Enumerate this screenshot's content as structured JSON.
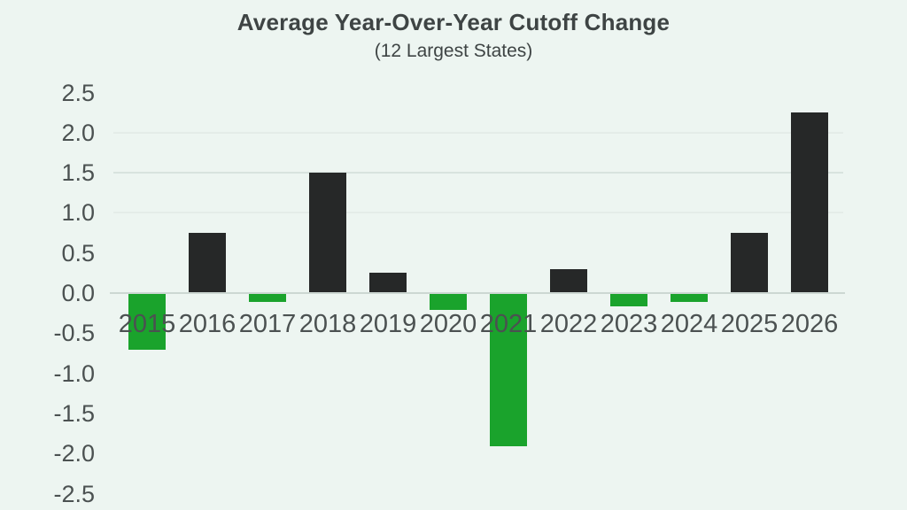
{
  "chart_data": {
    "type": "bar",
    "title": "Average Year-Over-Year Cutoff Change",
    "subtitle": "(12 Largest States)",
    "categories": [
      "2015",
      "2016",
      "2017",
      "2018",
      "2019",
      "2020",
      "2021",
      "2022",
      "2023",
      "2024",
      "2025",
      "2026"
    ],
    "values": [
      -0.7,
      0.75,
      -0.1,
      1.5,
      0.25,
      -0.2,
      -1.9,
      0.3,
      -0.15,
      -0.1,
      0.75,
      2.25
    ],
    "xlabel": "",
    "ylabel": "",
    "ylim": [
      -2.5,
      2.5
    ],
    "ytick_step": 0.5,
    "ytick_labels": [
      "2.5",
      "2.0",
      "1.5",
      "1.0",
      "0.5",
      "0.0",
      "-0.5",
      "-1.0",
      "-1.5",
      "-2.0",
      "-2.5"
    ],
    "grid": "faint horizontal remnants at 1.0, 1.5, 2.0",
    "legend_position": "none",
    "colors": {
      "background": "#edf5f1",
      "positive_bar": "#262828",
      "negative_bar": "#1aa32c",
      "title_text": "#3e4444",
      "tick_text": "#4b5151",
      "zero_line": "#ccd7d2",
      "gridline": "#bccac4"
    }
  }
}
